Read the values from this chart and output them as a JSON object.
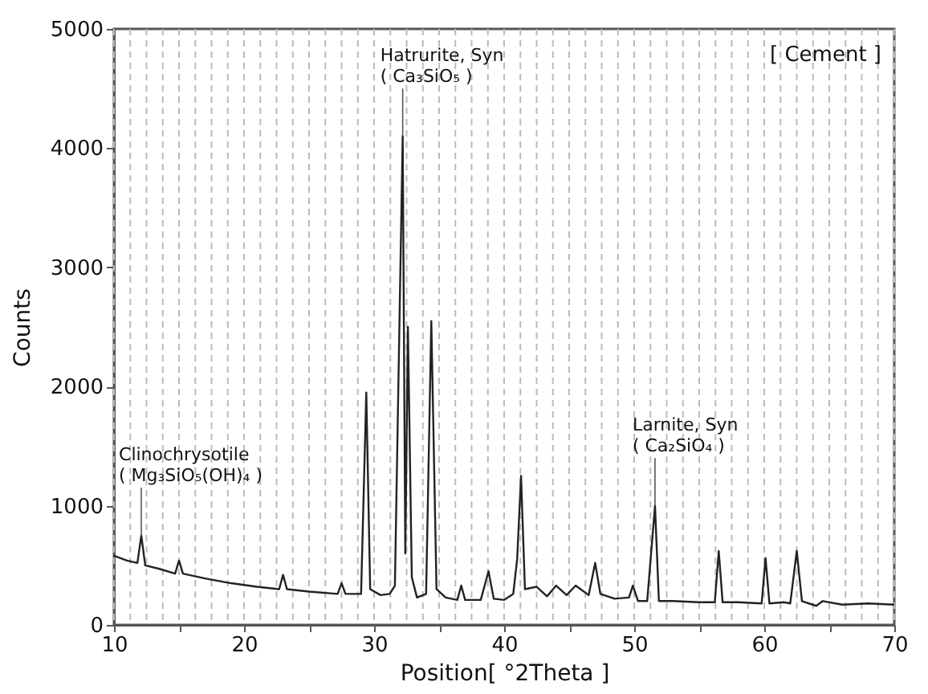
{
  "chart_data": {
    "type": "line",
    "xlabel": "Position[ °2Theta ]",
    "ylabel": "Counts",
    "color": "#222222",
    "x": [
      10,
      11,
      11.8,
      12.1,
      12.4,
      13.5,
      14.7,
      15,
      15.3,
      17,
      19,
      21,
      22.7,
      23,
      23.3,
      25,
      27.2,
      27.5,
      27.8,
      29,
      29.4,
      29.7,
      30.5,
      31.2,
      31.6,
      32.2,
      32.4,
      32.6,
      32.9,
      33.3,
      34,
      34.4,
      34.8,
      35.5,
      36.4,
      36.7,
      37,
      38.2,
      38.8,
      39.2,
      40,
      40.7,
      41,
      41.3,
      41.6,
      42.5,
      43.3,
      44,
      44.8,
      45.5,
      46.5,
      47,
      47.4,
      48.5,
      49.6,
      49.9,
      50.3,
      51,
      51.6,
      51.9,
      53,
      55,
      56.2,
      56.5,
      56.8,
      58,
      59.8,
      60.1,
      60.4,
      61.5,
      62,
      62.5,
      62.9,
      64,
      64.5,
      66,
      68,
      70
    ],
    "values": [
      580,
      540,
      520,
      750,
      500,
      470,
      430,
      540,
      430,
      390,
      350,
      320,
      300,
      420,
      300,
      280,
      260,
      350,
      260,
      260,
      1950,
      300,
      250,
      260,
      330,
      4100,
      600,
      2500,
      400,
      230,
      260,
      2550,
      300,
      230,
      210,
      330,
      210,
      210,
      450,
      220,
      210,
      260,
      550,
      1250,
      300,
      320,
      240,
      330,
      250,
      330,
      250,
      520,
      260,
      220,
      230,
      330,
      200,
      200,
      1000,
      200,
      200,
      190,
      190,
      620,
      190,
      190,
      180,
      560,
      180,
      190,
      180,
      620,
      200,
      160,
      200,
      170,
      180,
      170
    ],
    "xlim": [
      10,
      70
    ],
    "ylim": [
      0,
      5000
    ],
    "xticks": [
      10,
      {
        "value": 11.25,
        "label": null
      },
      {
        "value": 12.5,
        "label": null
      },
      {
        "value": 13.75,
        "label": null
      },
      {
        "value": 15,
        "label": null
      },
      {
        "value": 16.25,
        "label": null
      },
      {
        "value": 17.5,
        "label": null
      },
      {
        "value": 18.75,
        "label": null
      },
      20,
      {
        "value": 21.25,
        "label": null
      },
      {
        "value": 22.5,
        "label": null
      },
      {
        "value": 23.75,
        "label": null
      },
      {
        "value": 25,
        "label": null
      },
      {
        "value": 26.25,
        "label": null
      },
      {
        "value": 27.5,
        "label": null
      },
      {
        "value": 28.75,
        "label": null
      },
      30,
      {
        "value": 31.25,
        "label": null
      },
      {
        "value": 32.5,
        "label": null
      },
      {
        "value": 33.75,
        "label": null
      },
      {
        "value": 35,
        "label": null
      },
      {
        "value": 36.25,
        "label": null
      },
      {
        "value": 37.5,
        "label": null
      },
      {
        "value": 38.75,
        "label": null
      },
      40,
      {
        "value": 41.25,
        "label": null
      },
      {
        "value": 42.5,
        "label": null
      },
      {
        "value": 43.75,
        "label": null
      },
      {
        "value": 45,
        "label": null
      },
      {
        "value": 46.25,
        "label": null
      },
      {
        "value": 47.5,
        "label": null
      },
      {
        "value": 48.75,
        "label": null
      },
      50,
      {
        "value": 51.25,
        "label": null
      },
      {
        "value": 52.5,
        "label": null
      },
      {
        "value": 53.75,
        "label": null
      },
      {
        "value": 55,
        "label": null
      },
      {
        "value": 56.25,
        "label": null
      },
      {
        "value": 57.5,
        "label": null
      },
      {
        "value": 58.75,
        "label": null
      },
      60,
      {
        "value": 61.25,
        "label": null
      },
      {
        "value": 62.5,
        "label": null
      },
      {
        "value": 63.75,
        "label": null
      },
      {
        "value": 65,
        "label": null
      },
      {
        "value": 66.25,
        "label": null
      },
      {
        "value": 67.5,
        "label": null
      },
      {
        "value": 68.75,
        "label": null
      },
      70
    ],
    "yticks": [
      0,
      1000,
      2000,
      3000,
      4000,
      5000
    ],
    "grid": "x",
    "annotations": [
      "[ Cement ]",
      {
        "text": "Hatrurite, Syn\n( Ca₃SiO₅ )",
        "x": 32.2,
        "y": 4100
      },
      {
        "text": "Larnite, Syn\n( Ca₂SiO₄ )",
        "x": 51.6,
        "y": 1000
      },
      {
        "text": "Clinochrysotile\n( Mg₃SiO₅(OH)₄ )",
        "x": 12.1,
        "y": 750
      }
    ]
  }
}
